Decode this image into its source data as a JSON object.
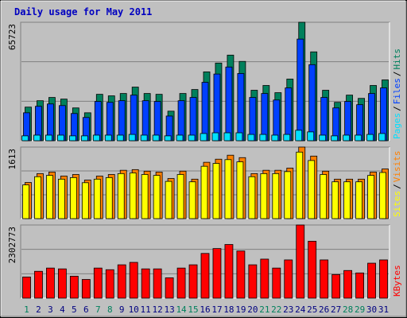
{
  "chart_data": [
    {
      "type": "bar",
      "title": "Daily usage for May 2011",
      "legend_separator": "/",
      "grid_divisions": 3,
      "ylim": [
        0,
        65723
      ],
      "yticks": [
        65723
      ],
      "series": [
        {
          "name": "Hits",
          "color": "#00805c",
          "values": [
            18650,
            22200,
            24000,
            23100,
            18200,
            15500,
            25750,
            24900,
            26200,
            29750,
            26200,
            25750,
            16400,
            26200,
            28400,
            38200,
            43100,
            47500,
            44000,
            28000,
            30650,
            26650,
            34200,
            65723,
            49300,
            28000,
            21300,
            25300,
            23500,
            30650,
            33750
          ]
        },
        {
          "name": "Files",
          "color": "#0040ff",
          "values": [
            15500,
            19100,
            20400,
            19500,
            15100,
            12900,
            21800,
            21300,
            22200,
            25300,
            22200,
            21800,
            13700,
            22200,
            24000,
            32400,
            37000,
            40900,
            37300,
            24000,
            26200,
            22600,
            29300,
            56400,
            42200,
            24000,
            18200,
            21800,
            20000,
            26200,
            29300
          ]
        },
        {
          "name": "Pages",
          "color": "#00e0ff",
          "values": [
            2700,
            3100,
            3100,
            3100,
            2700,
            2700,
            3100,
            3100,
            3100,
            3500,
            3100,
            3100,
            2700,
            3100,
            3100,
            4000,
            4400,
            4400,
            4400,
            3500,
            3500,
            3100,
            3500,
            5800,
            4900,
            3100,
            2700,
            3100,
            3100,
            3500,
            4000
          ]
        }
      ]
    },
    {
      "type": "bar",
      "legend_separator": "/",
      "grid_divisions": 3,
      "ylim": [
        0,
        1613
      ],
      "yticks": [
        1613
      ],
      "series": [
        {
          "name": "Visits",
          "color": "#ff8000",
          "values": [
            815,
            1015,
            1050,
            960,
            995,
            870,
            960,
            995,
            1090,
            1105,
            1070,
            1050,
            905,
            1070,
            890,
            1270,
            1340,
            1430,
            1375,
            1015,
            1090,
            1090,
            1140,
            1613,
            1410,
            1070,
            890,
            890,
            890,
            1050,
            1120
          ]
        },
        {
          "name": "Sites",
          "color": "#ffff00",
          "values": [
            760,
            945,
            975,
            890,
            925,
            810,
            890,
            925,
            1015,
            1030,
            995,
            975,
            840,
            995,
            830,
            1180,
            1245,
            1330,
            1280,
            945,
            1015,
            1015,
            1060,
            1500,
            1310,
            995,
            830,
            830,
            830,
            975,
            1040
          ]
        }
      ]
    },
    {
      "type": "bar",
      "grid_divisions": 3,
      "ylim": [
        0,
        2302773
      ],
      "yticks": [
        2302773
      ],
      "categories": [
        "1",
        "2",
        "3",
        "4",
        "5",
        "6",
        "7",
        "8",
        "9",
        "10",
        "11",
        "12",
        "13",
        "14",
        "15",
        "16",
        "17",
        "18",
        "19",
        "20",
        "21",
        "22",
        "23",
        "24",
        "25",
        "26",
        "27",
        "28",
        "29",
        "30",
        "31"
      ],
      "category_colors": [
        "#00805c",
        "#000080",
        "#000080",
        "#000080",
        "#000080",
        "#000080",
        "#00805c",
        "#00805c",
        "#000080",
        "#000080",
        "#000080",
        "#000080",
        "#000080",
        "#00805c",
        "#00805c",
        "#000080",
        "#000080",
        "#000080",
        "#000080",
        "#000080",
        "#00805c",
        "#00805c",
        "#000080",
        "#000080",
        "#000080",
        "#000080",
        "#000080",
        "#00805c",
        "#00805c",
        "#000080",
        "#000080"
      ],
      "series": [
        {
          "name": "KBytes",
          "color": "#ff0000",
          "values": [
            665000,
            845000,
            947000,
            921000,
            691000,
            588000,
            947000,
            895000,
            1049000,
            1126000,
            921000,
            921000,
            640000,
            947000,
            1049000,
            1407000,
            1561000,
            1689000,
            1484000,
            1049000,
            1228000,
            947000,
            1203000,
            2302773,
            1791000,
            1203000,
            742000,
            870000,
            793000,
            1100000,
            1203000
          ]
        }
      ]
    }
  ]
}
